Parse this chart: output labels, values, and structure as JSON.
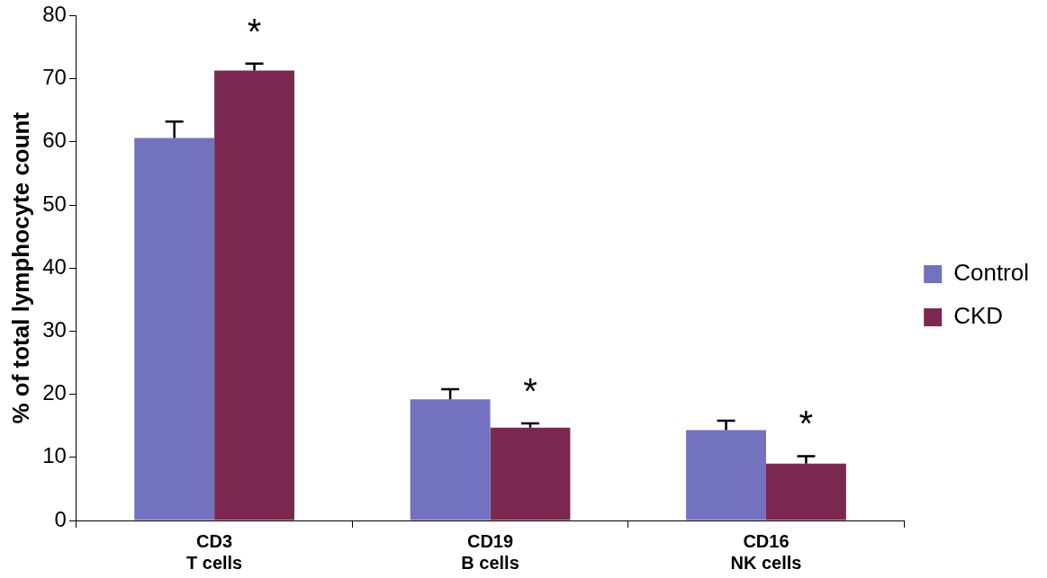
{
  "chart_data": {
    "type": "bar",
    "ylabel": "% of total lymphocyte count",
    "categories": [
      "CD3\nT cells",
      "CD19\nB cells",
      "CD16\nNK cells"
    ],
    "series": [
      {
        "name": "Control",
        "color": "#7272c0",
        "values": [
          60.6,
          19.2,
          14.3
        ],
        "errors": [
          [
            60.6,
            63.2
          ],
          [
            19.2,
            20.8
          ],
          [
            14.3,
            15.8
          ]
        ]
      },
      {
        "name": "CKD",
        "color": "#7a2850",
        "values": [
          71.3,
          14.7,
          9.0
        ],
        "errors": [
          [
            71.3,
            72.4
          ],
          [
            14.7,
            15.4
          ],
          [
            9.0,
            10.2
          ]
        ]
      }
    ],
    "ylim": [
      0,
      80
    ],
    "yticks": [
      0,
      10,
      20,
      30,
      40,
      50,
      60,
      70,
      80
    ],
    "grid": false,
    "legend": "right",
    "annotations": [
      "*",
      "*",
      "*"
    ]
  }
}
